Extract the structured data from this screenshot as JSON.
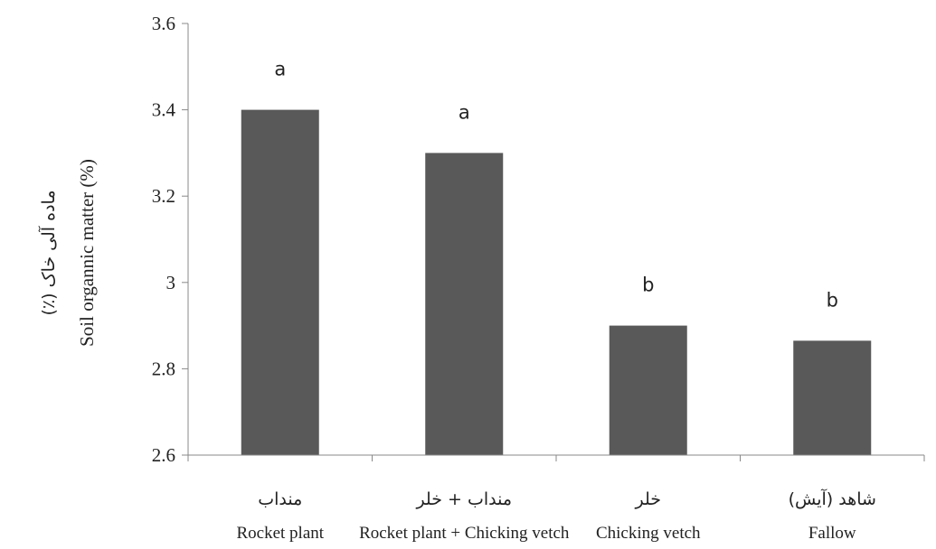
{
  "chart_data": {
    "type": "bar",
    "categories": [
      {
        "fa": "منداب",
        "en": "Rocket plant"
      },
      {
        "fa": "منداب + خلر",
        "en": "Rocket plant + Chicking vetch"
      },
      {
        "fa": "خلر",
        "en": "Chicking vetch"
      },
      {
        "fa": "شاهد (آیش)",
        "en": "Fallow"
      }
    ],
    "values": [
      3.4,
      3.3,
      2.9,
      2.865
    ],
    "significance_letters": [
      "a",
      "a",
      "b",
      "b"
    ],
    "ylabel_fa": "ماده آلی خاک (٪)",
    "ylabel_en": "Soil organnic matter (%)",
    "xlabel": "",
    "ylim": [
      2.6,
      3.6
    ],
    "yticks": [
      {
        "value": 2.6,
        "label": "2.6"
      },
      {
        "value": 2.8,
        "label": "2.8"
      },
      {
        "value": 3.0,
        "label": "3"
      },
      {
        "value": 3.2,
        "label": "3.2"
      },
      {
        "value": 3.4,
        "label": "3.4"
      },
      {
        "value": 3.6,
        "label": "3.6"
      }
    ],
    "bar_color": "#595959",
    "grid": false
  }
}
